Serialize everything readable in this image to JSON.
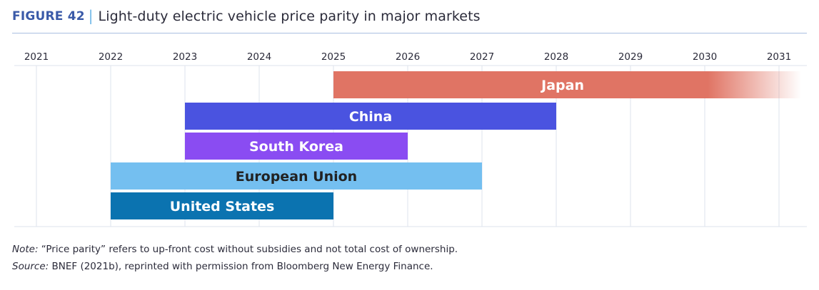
{
  "header": {
    "figure_label": "FIGURE 42",
    "separator": "|",
    "title": "Light-duty electric vehicle price parity in major markets"
  },
  "chart_data": {
    "type": "bar",
    "orientation": "horizontal-range",
    "title": "Light-duty electric vehicle price parity in major markets",
    "x_ticks": [
      "2021",
      "2022",
      "2023",
      "2024",
      "2025",
      "2026",
      "2027",
      "2028",
      "2029",
      "2030",
      "2031"
    ],
    "xlim": [
      2020.7,
      2031.3
    ],
    "grid": true,
    "series": [
      {
        "name": "Japan",
        "start": 2025,
        "end": 2031.3,
        "fade_out": true,
        "color": "#e07464",
        "label_color": "#ffffff"
      },
      {
        "name": "China",
        "start": 2023,
        "end": 2028,
        "color": "#4a53e0",
        "label_color": "#ffffff"
      },
      {
        "name": "South Korea",
        "start": 2023,
        "end": 2026,
        "color": "#8a4cf2",
        "label_color": "#ffffff"
      },
      {
        "name": "European Union",
        "start": 2022,
        "end": 2027,
        "color": "#74bff0",
        "label_color": "#222222"
      },
      {
        "name": "United States",
        "start": 2022,
        "end": 2025,
        "color": "#0b73b0",
        "label_color": "#ffffff"
      }
    ]
  },
  "notes": {
    "note_label": "Note:",
    "note_text": " “Price parity” refers to up-front cost without subsidies and not total cost of ownership.",
    "source_label": "Source:",
    "source_text": " BNEF (2021b), reprinted with permission from Bloomberg New Energy Finance."
  }
}
